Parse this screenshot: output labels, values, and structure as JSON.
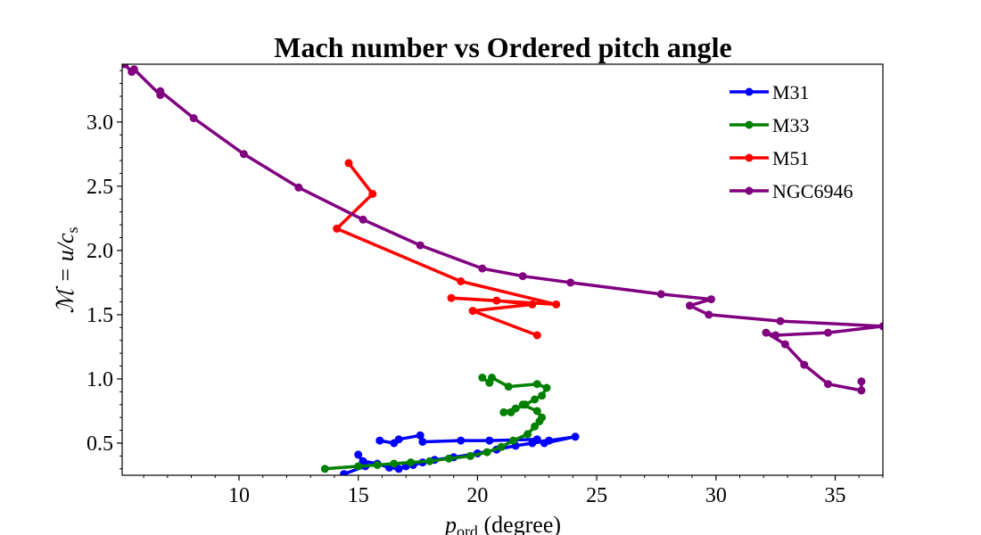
{
  "chart_data": {
    "type": "line",
    "title": "Mach number vs Ordered pitch angle",
    "xlabel": {
      "main": "p",
      "sub": "ord",
      "tail": " (degree)"
    },
    "ylabel": {
      "main": "ℳ = u/c",
      "sub": "s"
    },
    "xlim": [
      5.1,
      37
    ],
    "ylim": [
      0.25,
      3.45
    ],
    "xticks": [
      10,
      15,
      20,
      25,
      30,
      35
    ],
    "yticks": [
      0.5,
      1.0,
      1.5,
      2.0,
      2.5,
      3.0
    ],
    "xtick_labels": [
      "10",
      "15",
      "20",
      "25",
      "30",
      "35"
    ],
    "ytick_labels": [
      "0.5",
      "1.0",
      "1.5",
      "2.0",
      "2.5",
      "3.0"
    ],
    "grid": false,
    "legend_position": "top-right",
    "series": [
      {
        "name": "M31",
        "color": "#0000ff",
        "points": [
          [
            14.4,
            0.26
          ],
          [
            15.3,
            0.32
          ],
          [
            15.0,
            0.41
          ],
          [
            15.2,
            0.36
          ],
          [
            15.8,
            0.34
          ],
          [
            16.3,
            0.31
          ],
          [
            16.7,
            0.3
          ],
          [
            17.0,
            0.32
          ],
          [
            17.3,
            0.33
          ],
          [
            17.7,
            0.35
          ],
          [
            18.2,
            0.37
          ],
          [
            19.0,
            0.39
          ],
          [
            20.0,
            0.42
          ],
          [
            20.8,
            0.45
          ],
          [
            21.6,
            0.48
          ],
          [
            22.3,
            0.5
          ],
          [
            23.0,
            0.52
          ],
          [
            24.1,
            0.55
          ],
          [
            22.8,
            0.5
          ],
          [
            22.5,
            0.53
          ],
          [
            20.5,
            0.52
          ],
          [
            19.3,
            0.52
          ],
          [
            17.7,
            0.51
          ],
          [
            17.6,
            0.56
          ],
          [
            16.7,
            0.53
          ],
          [
            16.5,
            0.5
          ],
          [
            15.9,
            0.52
          ]
        ]
      },
      {
        "name": "M33",
        "color": "#008000",
        "points": [
          [
            13.6,
            0.3
          ],
          [
            15.0,
            0.32
          ],
          [
            15.8,
            0.33
          ],
          [
            16.5,
            0.34
          ],
          [
            17.2,
            0.35
          ],
          [
            18.0,
            0.36
          ],
          [
            18.8,
            0.38
          ],
          [
            19.7,
            0.4
          ],
          [
            20.4,
            0.43
          ],
          [
            21.0,
            0.47
          ],
          [
            21.5,
            0.52
          ],
          [
            22.1,
            0.57
          ],
          [
            22.4,
            0.63
          ],
          [
            22.6,
            0.67
          ],
          [
            22.7,
            0.7
          ],
          [
            22.5,
            0.75
          ],
          [
            21.9,
            0.8
          ],
          [
            21.4,
            0.74
          ],
          [
            21.1,
            0.74
          ],
          [
            21.6,
            0.77
          ],
          [
            22.0,
            0.8
          ],
          [
            22.4,
            0.84
          ],
          [
            22.7,
            0.87
          ],
          [
            22.9,
            0.93
          ],
          [
            22.5,
            0.96
          ],
          [
            21.3,
            0.94
          ],
          [
            20.6,
            1.01
          ],
          [
            20.5,
            0.97
          ],
          [
            20.2,
            1.01
          ]
        ]
      },
      {
        "name": "M51",
        "color": "#ff0000",
        "points": [
          [
            14.6,
            2.68
          ],
          [
            15.6,
            2.44
          ],
          [
            14.1,
            2.17
          ],
          [
            19.3,
            1.76
          ],
          [
            23.3,
            1.58
          ],
          [
            18.9,
            1.63
          ],
          [
            20.8,
            1.61
          ],
          [
            22.3,
            1.58
          ],
          [
            19.8,
            1.53
          ],
          [
            22.5,
            1.34
          ]
        ]
      },
      {
        "name": "NGC6946",
        "color": "#800080",
        "points": [
          [
            5.2,
            3.45
          ],
          [
            5.5,
            3.39
          ],
          [
            5.6,
            3.41
          ],
          [
            6.7,
            3.21
          ],
          [
            6.7,
            3.24
          ],
          [
            8.1,
            3.03
          ],
          [
            10.2,
            2.75
          ],
          [
            12.5,
            2.49
          ],
          [
            15.2,
            2.24
          ],
          [
            17.6,
            2.04
          ],
          [
            20.2,
            1.86
          ],
          [
            21.9,
            1.8
          ],
          [
            23.9,
            1.75
          ],
          [
            27.7,
            1.66
          ],
          [
            29.8,
            1.62
          ],
          [
            28.9,
            1.57
          ],
          [
            29.7,
            1.5
          ],
          [
            32.7,
            1.45
          ],
          [
            37.0,
            1.41
          ],
          [
            34.7,
            1.36
          ],
          [
            32.5,
            1.34
          ],
          [
            32.1,
            1.36
          ],
          [
            32.9,
            1.27
          ],
          [
            33.7,
            1.11
          ],
          [
            34.7,
            0.96
          ],
          [
            36.1,
            0.91
          ],
          [
            36.1,
            0.98
          ]
        ]
      }
    ]
  }
}
